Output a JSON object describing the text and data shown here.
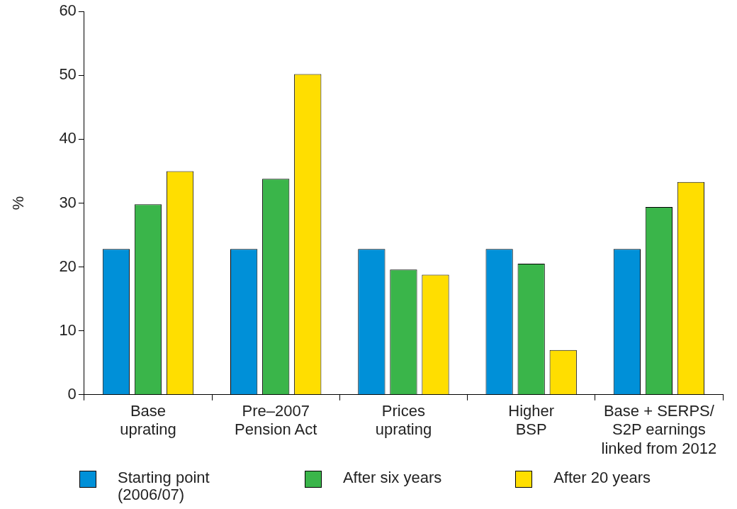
{
  "chart_data": {
    "type": "bar",
    "ylabel": "%",
    "categories": [
      "Base\nuprating",
      "Pre–2007\nPension Act",
      "Prices\nuprating",
      "Higher\nBSP",
      "Base + SERPS/\nS2P earnings\nlinked from 2012"
    ],
    "series": [
      {
        "name": "Starting point (2006/07)",
        "color": "#0090d8",
        "values": [
          22.8,
          22.8,
          22.8,
          22.8,
          22.8
        ]
      },
      {
        "name": "After six years",
        "color": "#3ab54a",
        "values": [
          29.8,
          33.8,
          19.6,
          20.5,
          29.4
        ]
      },
      {
        "name": "After 20 years",
        "color": "#ffde00",
        "values": [
          35,
          50.2,
          18.8,
          7,
          33.3
        ]
      }
    ],
    "ylim": [
      0,
      60
    ],
    "yticks": [
      0,
      10,
      20,
      30,
      40,
      50,
      60
    ],
    "grid": false,
    "legend": "bottom"
  }
}
